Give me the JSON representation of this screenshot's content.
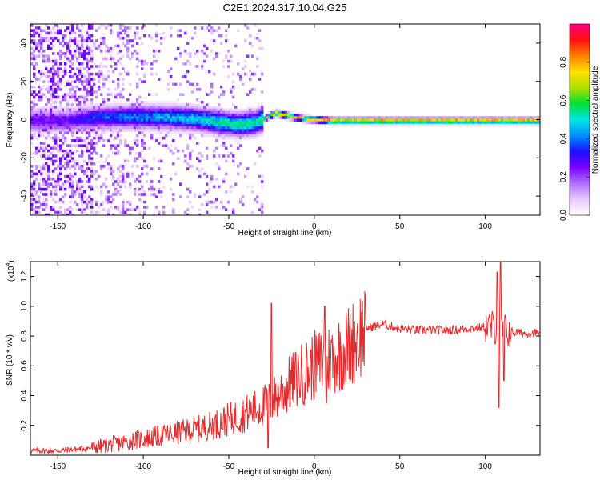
{
  "figure": {
    "title": "C2E1.2024.317.10.04.G25"
  },
  "chart_data": [
    {
      "type": "heatmap",
      "title": "C2E1.2024.317.10.04.G25",
      "xlabel": "Height of straight line (km)",
      "ylabel": "Frequency (Hz)",
      "xlim": [
        -166,
        132
      ],
      "ylim": [
        -50,
        50
      ],
      "x_ticks": [
        -150,
        -100,
        -50,
        0,
        50,
        100
      ],
      "x_tick_labels": [
        "-150",
        "-100",
        "-50",
        "0",
        "50",
        "100"
      ],
      "y_ticks": [
        -40,
        -20,
        0,
        20,
        40
      ],
      "y_tick_labels": [
        "-40",
        "-20",
        "0",
        "20",
        "40"
      ],
      "colorbar": {
        "label": "Normalized spectral amplitude",
        "range": [
          0,
          1
        ],
        "ticks": [
          0.0,
          0.2,
          0.4,
          0.6,
          0.8
        ],
        "tick_labels": [
          "0.0",
          "0.2",
          "0.4",
          "0.6",
          "0.8"
        ],
        "colors": [
          "#ffffff",
          "#e6c8ff",
          "#b070ff",
          "#7a00ff",
          "#1a10ff",
          "#0090ff",
          "#00e6e6",
          "#00e030",
          "#b0e000",
          "#ffe000",
          "#ff8000",
          "#ff1010",
          "#ff0080"
        ]
      },
      "trace": [
        {
          "x": -145,
          "freq": 0,
          "amp": 0.3
        },
        {
          "x": -130,
          "freq": 1.5,
          "amp": 0.4
        },
        {
          "x": -110,
          "freq": 2,
          "amp": 0.45
        },
        {
          "x": -90,
          "freq": 2,
          "amp": 0.5
        },
        {
          "x": -70,
          "freq": 1,
          "amp": 0.55
        },
        {
          "x": -55,
          "freq": -1,
          "amp": 0.6
        },
        {
          "x": -45,
          "freq": -2,
          "amp": 0.62
        },
        {
          "x": -35,
          "freq": -1,
          "amp": 0.62
        },
        {
          "x": -28,
          "freq": 2,
          "amp": 0.7
        },
        {
          "x": -23,
          "freq": 4,
          "amp": 0.9
        },
        {
          "x": -15,
          "freq": 2.5,
          "amp": 0.9
        },
        {
          "x": -5,
          "freq": 1,
          "amp": 0.88
        },
        {
          "x": 10,
          "freq": 0,
          "amp": 0.95
        },
        {
          "x": 30,
          "freq": 0,
          "amp": 0.95
        },
        {
          "x": 60,
          "freq": 0,
          "amp": 0.95
        },
        {
          "x": 90,
          "freq": 0,
          "amp": 0.95
        },
        {
          "x": 110,
          "freq": 0,
          "amp": 0.92
        },
        {
          "x": 132,
          "freq": 0,
          "amp": 0.95
        }
      ]
    },
    {
      "type": "line",
      "xlabel": "Height of straight line (km)",
      "ylabel": "SNR (10 * v/v)",
      "y_multiplier_label": "(x10",
      "y_multiplier_exponent": "4",
      "y_multiplier_close": ")",
      "xlim": [
        -166,
        132
      ],
      "ylim": [
        0,
        1.3
      ],
      "x_ticks": [
        -150,
        -100,
        -50,
        0,
        50,
        100
      ],
      "x_tick_labels": [
        "-150",
        "-100",
        "-50",
        "0",
        "50",
        "100"
      ],
      "y_ticks": [
        0.2,
        0.4,
        0.6,
        0.8,
        1.0,
        1.2
      ],
      "y_tick_labels": [
        "0.2",
        "0.4",
        "0.6",
        "0.8",
        "1.0",
        "1.2"
      ],
      "color": "#e8292b",
      "series": [
        {
          "name": "SNR",
          "x": [
            -166,
            -150,
            -140,
            -130,
            -120,
            -110,
            -100,
            -90,
            -80,
            -70,
            -60,
            -50,
            -40,
            -30,
            -25,
            -20,
            -10,
            0,
            10,
            20,
            30,
            40,
            50,
            60,
            70,
            80,
            90,
            100,
            105,
            108,
            110,
            115,
            120,
            132
          ],
          "y": [
            0.03,
            0.03,
            0.04,
            0.05,
            0.07,
            0.09,
            0.11,
            0.13,
            0.15,
            0.17,
            0.2,
            0.24,
            0.28,
            0.33,
            0.36,
            0.42,
            0.52,
            0.6,
            0.65,
            0.73,
            0.85,
            0.88,
            0.85,
            0.84,
            0.84,
            0.84,
            0.85,
            0.86,
            0.86,
            0.85,
            0.84,
            0.83,
            0.82,
            0.82
          ]
        }
      ],
      "spikes": [
        {
          "x": -25,
          "y": 1.02
        },
        {
          "x": -27,
          "y": 0.05
        },
        {
          "x": 6,
          "y": 1.0
        },
        {
          "x": 7,
          "y": 0.35
        },
        {
          "x": 107,
          "y": 1.23
        },
        {
          "x": 108,
          "y": 0.32
        },
        {
          "x": 109,
          "y": 1.3
        },
        {
          "x": 111,
          "y": 0.5
        }
      ]
    }
  ]
}
